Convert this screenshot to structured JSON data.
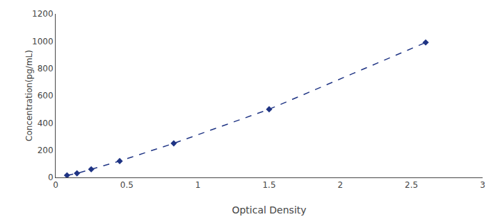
{
  "chart_data": {
    "type": "line",
    "x": [
      0.08,
      0.15,
      0.25,
      0.45,
      0.83,
      1.5,
      2.6
    ],
    "values": [
      15,
      30,
      60,
      120,
      250,
      500,
      990
    ],
    "color": "#1f3484",
    "marker": "diamond",
    "line_style": "dashed",
    "xlabel": "Optical Density",
    "ylabel": "Concentration(pg/mL)",
    "xlim": [
      0,
      3
    ],
    "ylim": [
      0,
      1200
    ],
    "xticks": [
      0,
      0.5,
      1,
      1.5,
      2,
      2.5,
      3
    ],
    "yticks": [
      0,
      200,
      400,
      600,
      800,
      1000,
      1200
    ],
    "grid": false
  }
}
